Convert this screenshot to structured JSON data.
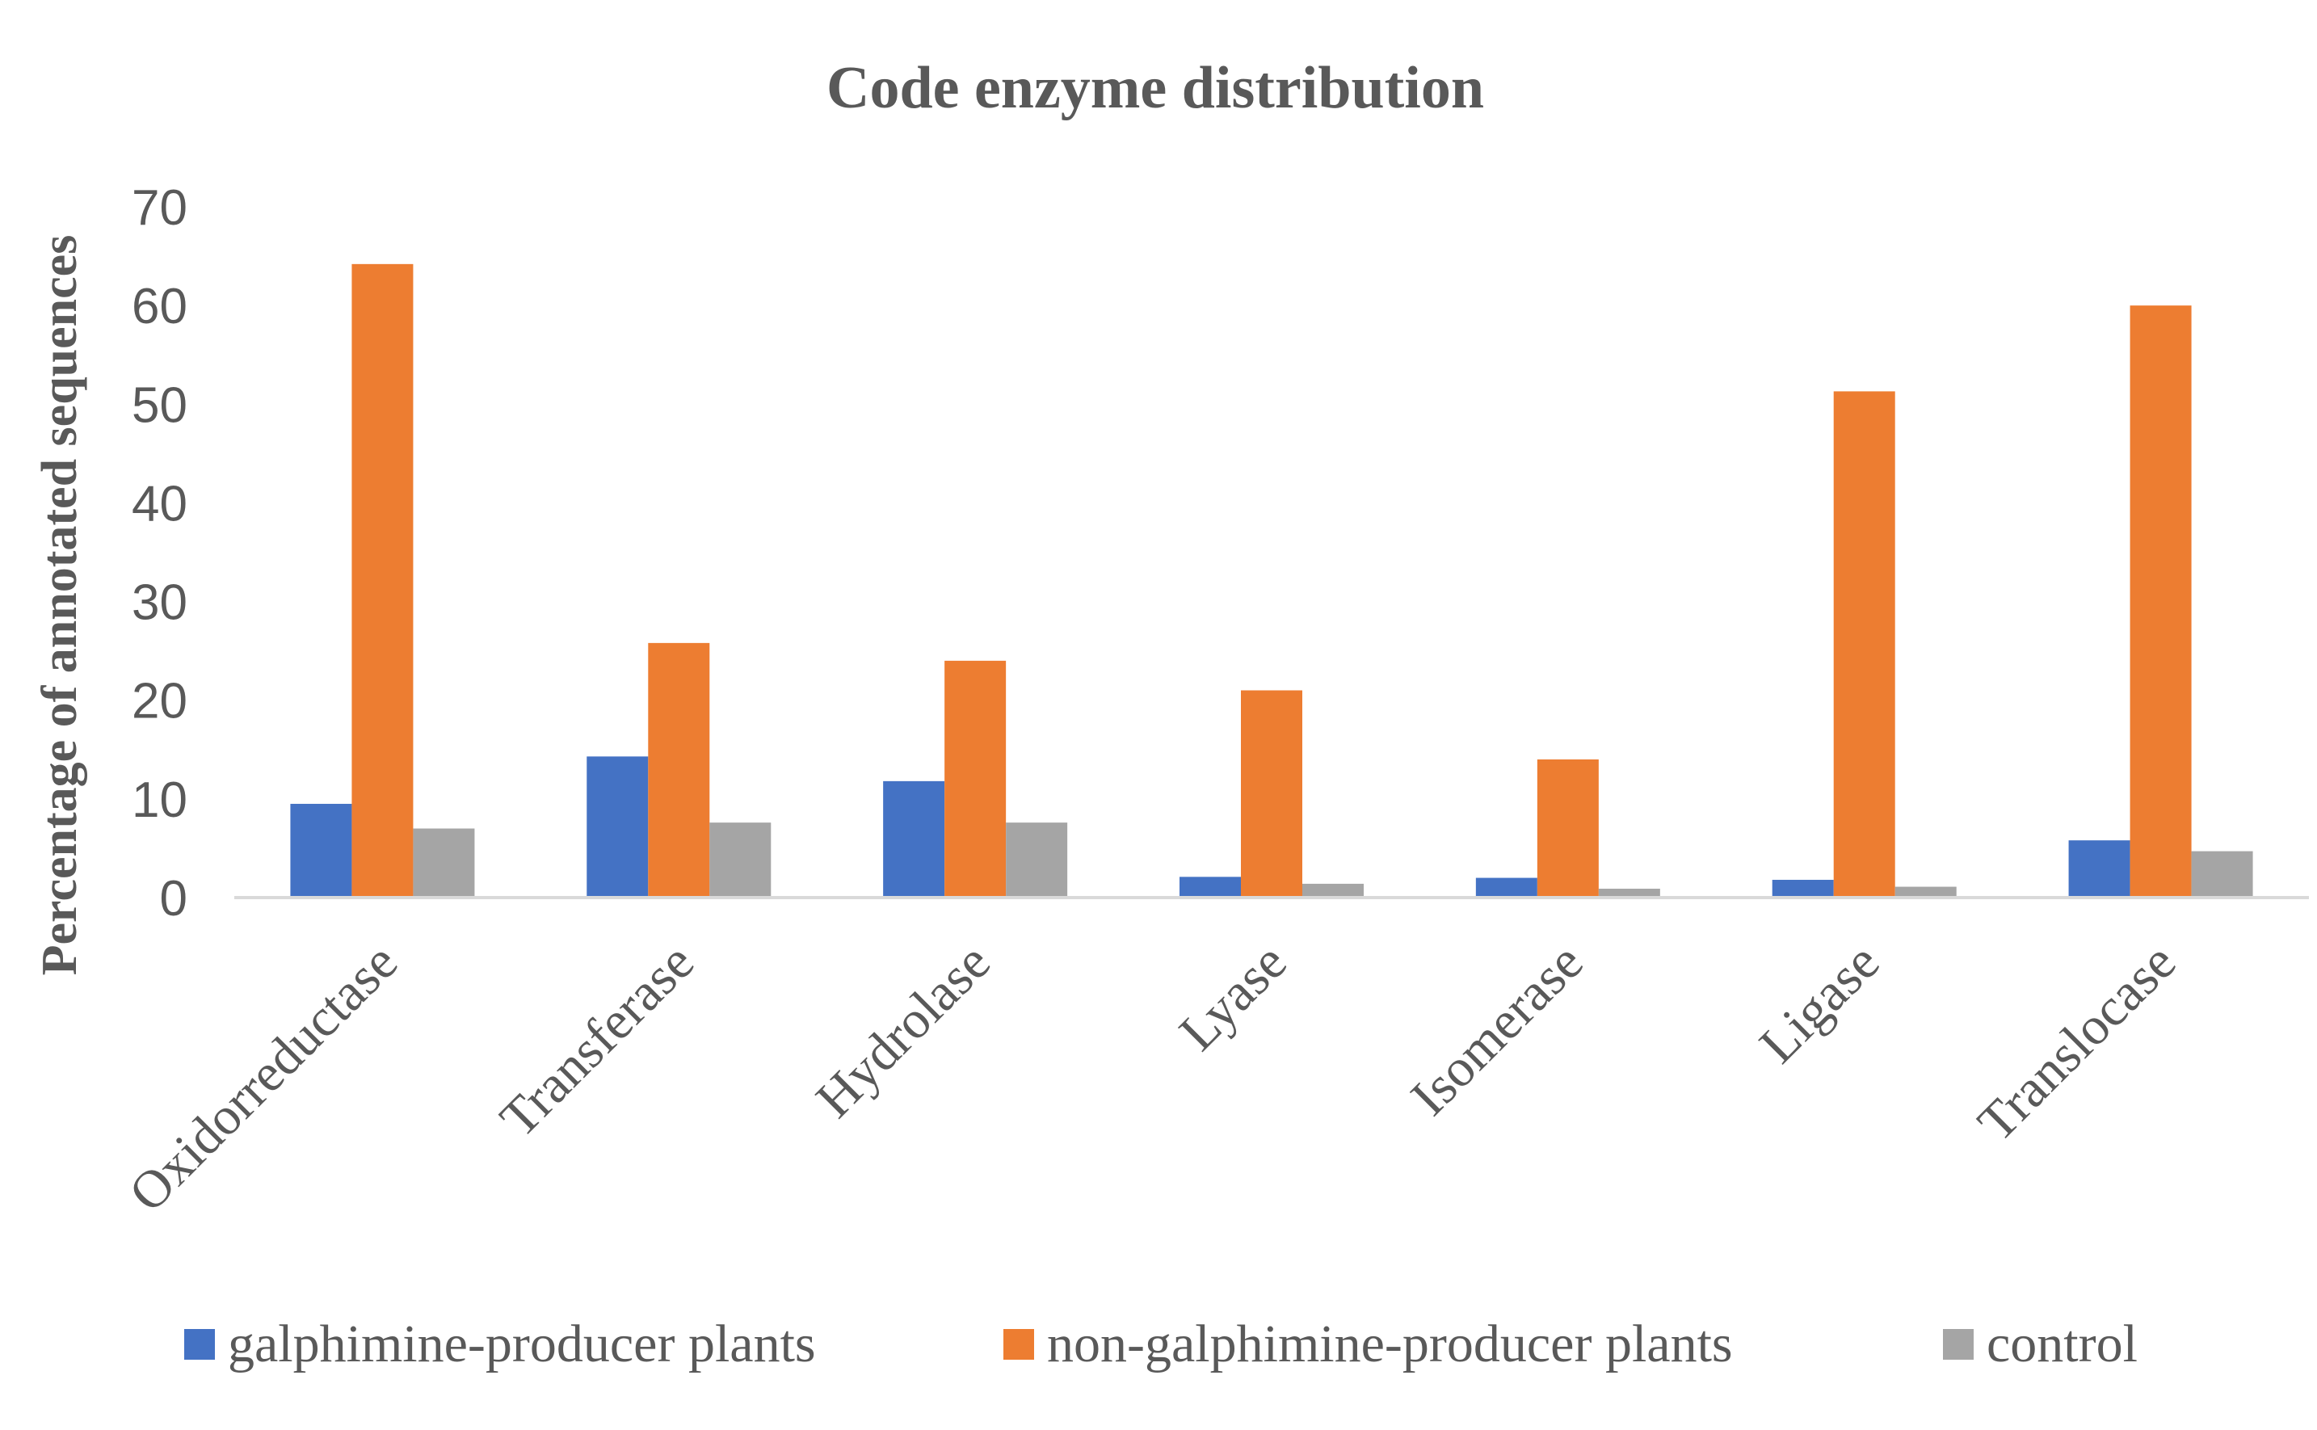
{
  "chart_data": {
    "type": "bar",
    "title": "Code enzyme distribution",
    "xlabel": "",
    "ylabel": "Percentage of annotated sequences",
    "ylim": [
      0,
      70
    ],
    "yticks": [
      0,
      10,
      20,
      30,
      40,
      50,
      60,
      70
    ],
    "grid": false,
    "legend_position": "bottom",
    "categories": [
      "Oxidorreductase",
      "Transferase",
      "Hydrolase",
      "Lyase",
      "Isomerase",
      "Ligase",
      "Translocase"
    ],
    "series": [
      {
        "name": "galphimine-producer plants",
        "color": "#4472C4",
        "values": [
          9.5,
          14.3,
          11.8,
          2.1,
          2.0,
          1.8,
          5.8
        ]
      },
      {
        "name": "non-galphimine-producer plants",
        "color": "#ED7D31",
        "values": [
          64.2,
          25.8,
          24.0,
          21.0,
          14.0,
          51.3,
          60.0
        ]
      },
      {
        "name": "control",
        "color": "#A5A5A5",
        "values": [
          7.0,
          7.6,
          7.6,
          1.4,
          0.9,
          1.1,
          4.7
        ]
      }
    ],
    "axis_color": "#D9D9D9"
  }
}
